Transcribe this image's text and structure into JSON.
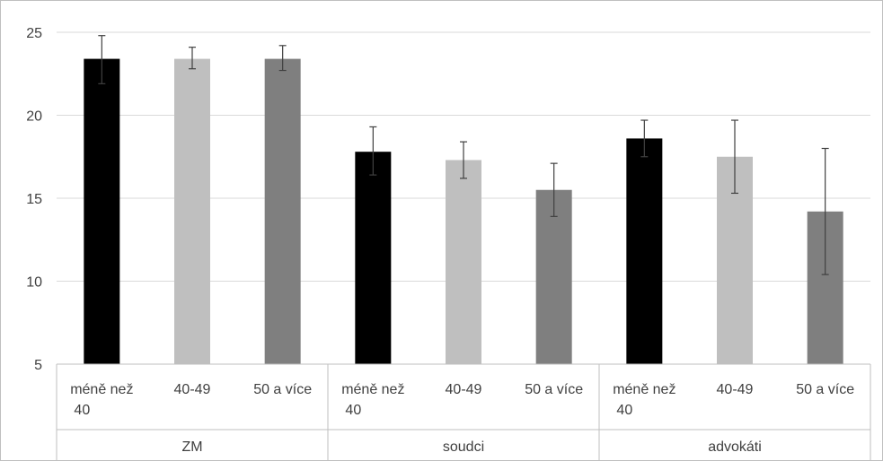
{
  "chart_data": {
    "type": "bar",
    "title": "",
    "xlabel": "",
    "ylabel": "",
    "ylim": [
      5,
      25
    ],
    "yticks": [
      5,
      10,
      15,
      20,
      25
    ],
    "grid": true,
    "legend": "none",
    "groups": [
      {
        "label": "ZM",
        "bars": [
          {
            "category": "méně než 40",
            "value": 23.4,
            "err_low": 21.9,
            "err_high": 24.8,
            "color": "#000000"
          },
          {
            "category": "40-49",
            "value": 23.4,
            "err_low": 22.8,
            "err_high": 24.1,
            "color": "#bfbfbf"
          },
          {
            "category": "50 a více",
            "value": 23.4,
            "err_low": 22.7,
            "err_high": 24.2,
            "color": "#7f7f7f"
          }
        ]
      },
      {
        "label": "soudci",
        "bars": [
          {
            "category": "méně než 40",
            "value": 17.8,
            "err_low": 16.4,
            "err_high": 19.3,
            "color": "#000000"
          },
          {
            "category": "40-49",
            "value": 17.3,
            "err_low": 16.2,
            "err_high": 18.4,
            "color": "#bfbfbf"
          },
          {
            "category": "50 a více",
            "value": 15.5,
            "err_low": 13.9,
            "err_high": 17.1,
            "color": "#7f7f7f"
          }
        ]
      },
      {
        "label": "advokáti",
        "bars": [
          {
            "category": "méně než 40",
            "value": 18.6,
            "err_low": 17.5,
            "err_high": 19.7,
            "color": "#000000"
          },
          {
            "category": "40-49",
            "value": 17.5,
            "err_low": 15.3,
            "err_high": 19.7,
            "color": "#bfbfbf"
          },
          {
            "category": "50 a více",
            "value": 14.2,
            "err_low": 10.4,
            "err_high": 18.0,
            "color": "#7f7f7f"
          }
        ]
      }
    ]
  }
}
